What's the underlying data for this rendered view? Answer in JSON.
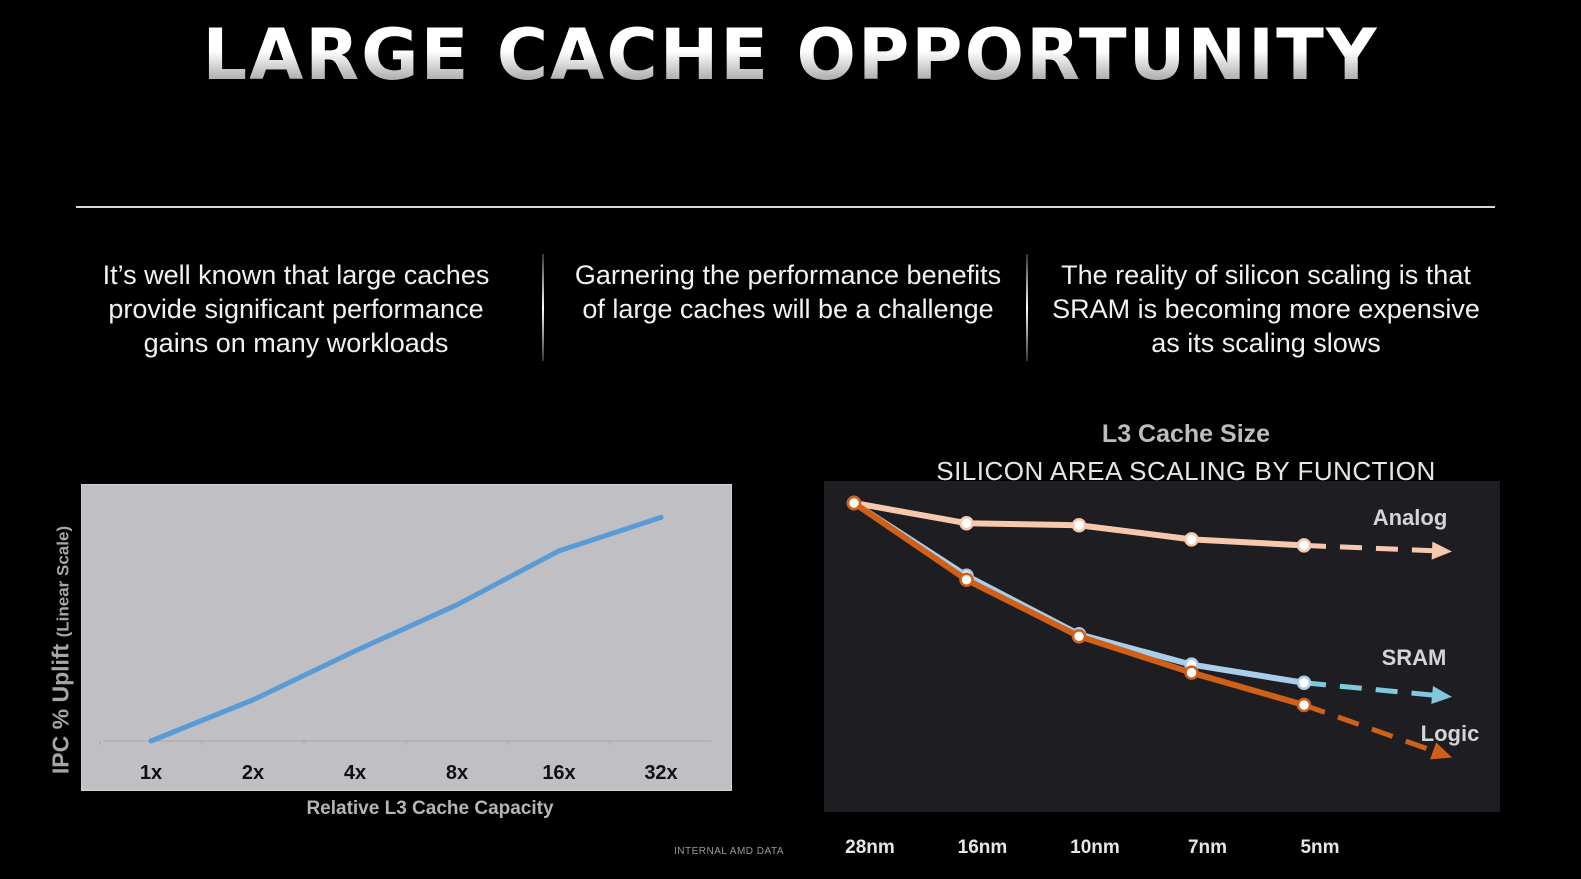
{
  "slide": {
    "title": "LARGE CACHE OPPORTUNITY",
    "columns": [
      "It’s well known that large caches provide significant performance gains on many workloads",
      "Garnering the performance benefits of large caches will be a challenge",
      "The reality of silicon scaling is that SRAM is becoming more expensive as its scaling slows"
    ],
    "footnote": "INTERNAL AMD DATA"
  },
  "chart_data": [
    {
      "type": "line",
      "title": "",
      "xlabel": "Relative L3 Cache Capacity",
      "ylabel": "IPC % Uplift",
      "ylabel_note": "(Linear Scale)",
      "categories": [
        "1x",
        "2x",
        "4x",
        "8x",
        "16x",
        "32x"
      ],
      "series": [
        {
          "values": [
            0,
            16,
            35,
            53,
            74,
            87
          ],
          "color": "#5b9bd5"
        }
      ],
      "ylim": [
        0,
        100
      ],
      "y_axis_ticks_shown": false,
      "grid": false,
      "background": "#c0c0c4"
    },
    {
      "type": "line",
      "title": "L3 Cache Size",
      "subtitle": "SILICON AREA SCALING BY FUNCTION",
      "categories": [
        "28nm",
        "16nm",
        "10nm",
        "7nm",
        "5nm"
      ],
      "series": [
        {
          "name": "Analog",
          "values": [
            1.0,
            0.9,
            0.89,
            0.82,
            0.79
          ],
          "projected_next": 0.76,
          "color": "#f6c8ae"
        },
        {
          "name": "SRAM",
          "values": [
            1.0,
            0.64,
            0.35,
            0.2,
            0.11
          ],
          "projected_next": 0.04,
          "color": "#a9cdea",
          "arrow_color": "#7fc8e0"
        },
        {
          "name": "Logic",
          "values": [
            1.0,
            0.62,
            0.34,
            0.16,
            0.0
          ],
          "projected_next": -0.26,
          "color": "#d06018"
        }
      ],
      "projection_style": "dashed-arrow",
      "ylim": [
        -0.3,
        1.0
      ],
      "y_axis_shown": false,
      "grid": false,
      "background": "#1e1e22"
    }
  ]
}
